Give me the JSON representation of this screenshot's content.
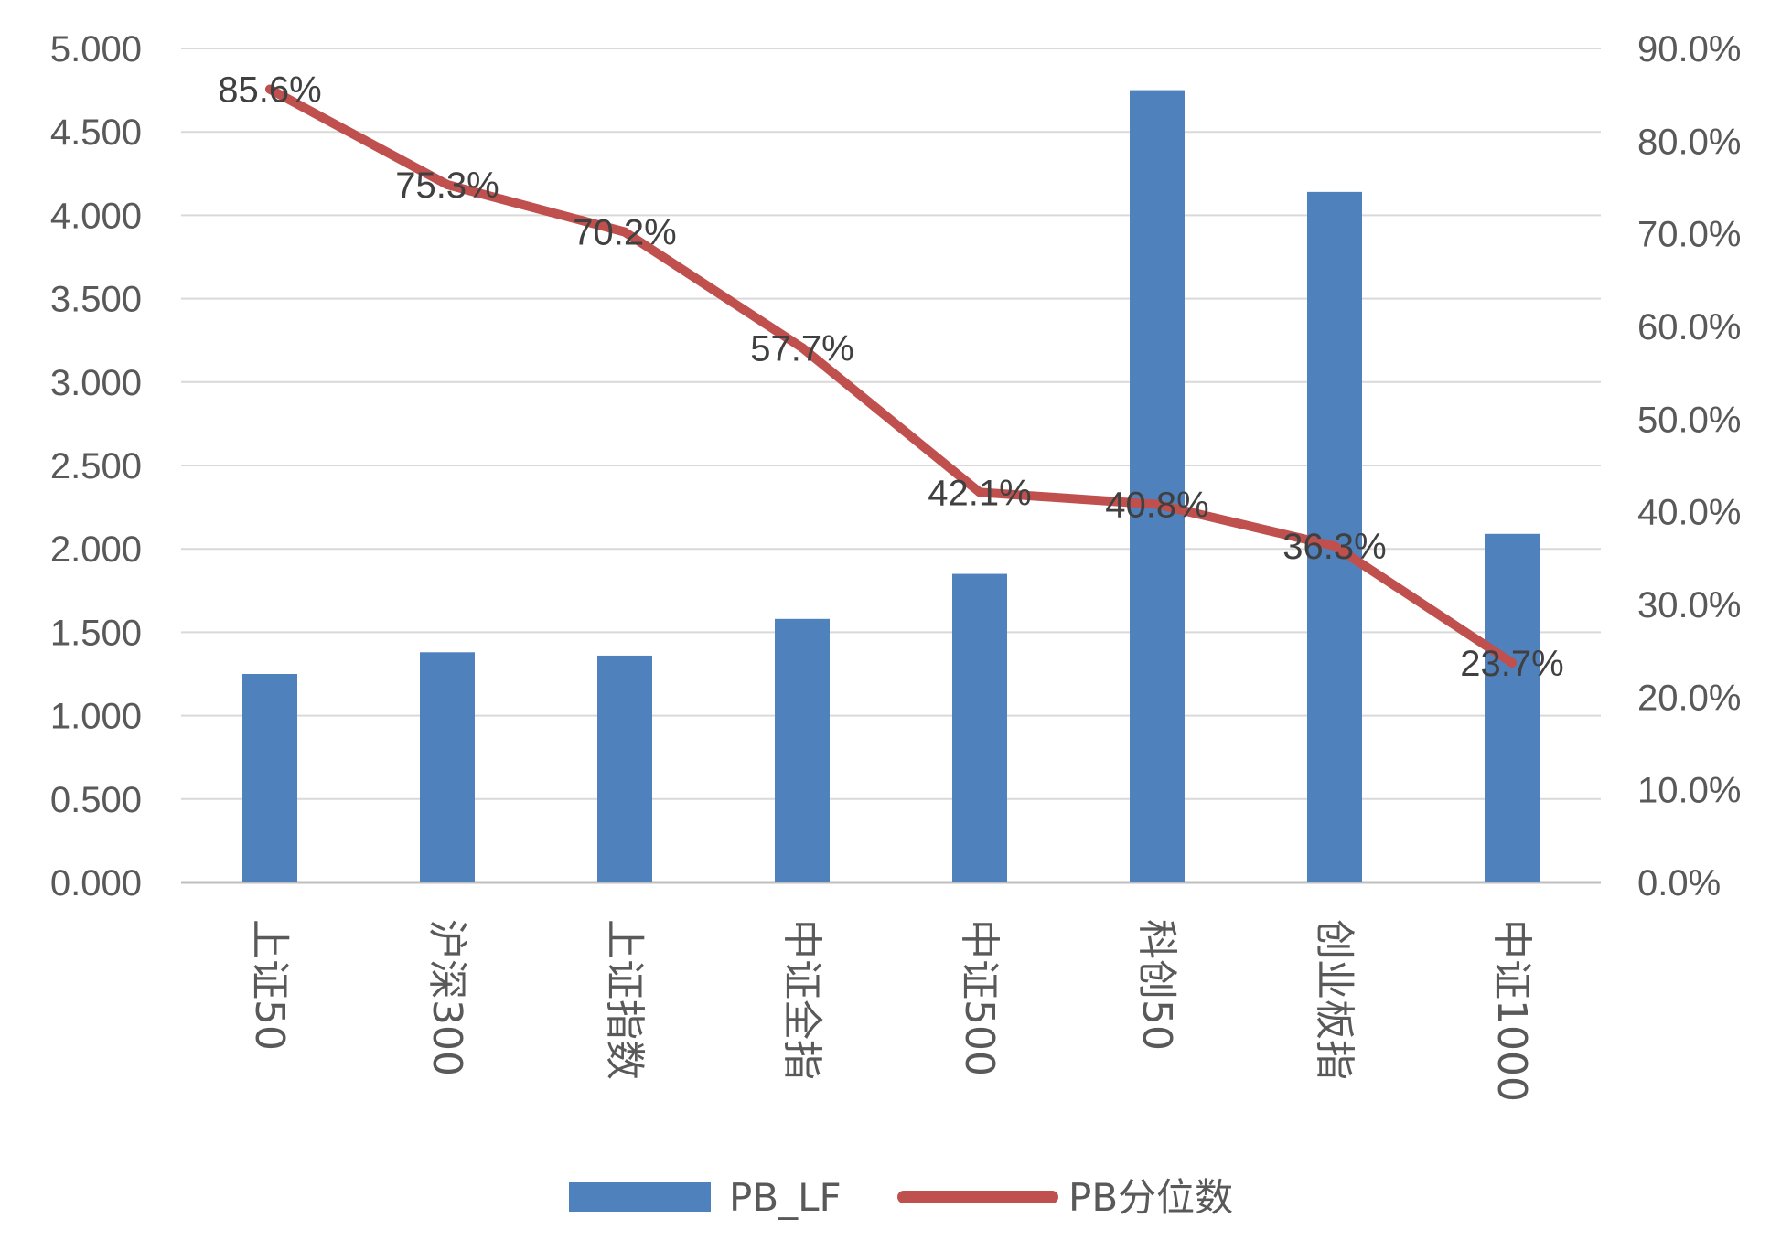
{
  "chart_data": {
    "type": "bar",
    "categories": [
      "上证50",
      "沪深300",
      "上证指数",
      "中证全指",
      "中证500",
      "科创50",
      "创业板指",
      "中证1000"
    ],
    "series": [
      {
        "name": "PB_LF",
        "type": "bar",
        "axis": "left",
        "color": "#4f81bd",
        "values": [
          1.25,
          1.38,
          1.36,
          1.58,
          1.85,
          4.75,
          4.14,
          2.09
        ]
      },
      {
        "name": "PB分位数",
        "type": "line",
        "axis": "right",
        "color": "#c0504d",
        "values": [
          85.6,
          75.3,
          70.2,
          57.7,
          42.1,
          40.8,
          36.3,
          23.7
        ],
        "labels": [
          "85.6%",
          "75.3%",
          "70.2%",
          "57.7%",
          "42.1%",
          "40.8%",
          "36.3%",
          "23.7%"
        ]
      }
    ],
    "y_left": {
      "ylim": [
        0,
        5
      ],
      "ticks": [
        "0.000",
        "0.500",
        "1.000",
        "1.500",
        "2.000",
        "2.500",
        "3.000",
        "3.500",
        "4.000",
        "4.500",
        "5.000"
      ]
    },
    "y_right": {
      "ylim": [
        0,
        90
      ],
      "ticks": [
        "0.0%",
        "10.0%",
        "20.0%",
        "30.0%",
        "40.0%",
        "50.0%",
        "60.0%",
        "70.0%",
        "80.0%",
        "90.0%"
      ]
    },
    "grid": true,
    "legend_position": "bottom",
    "category_label_orientation": "vertical-rotated"
  }
}
